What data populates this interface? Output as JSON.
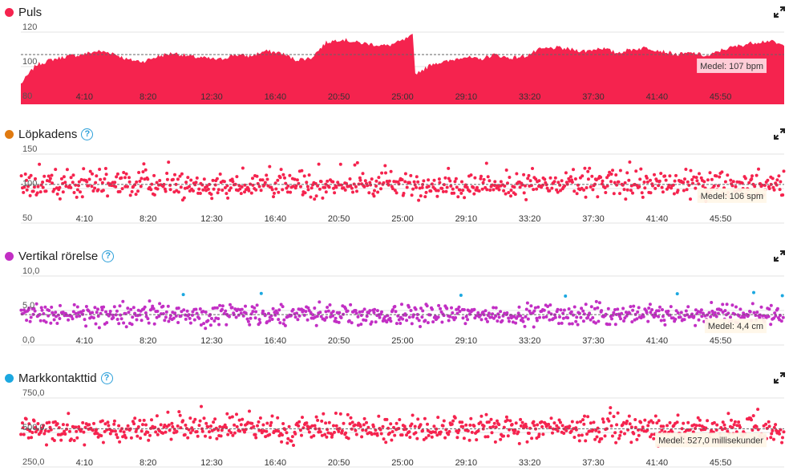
{
  "colors": {
    "pulse": "#f5234e",
    "cadence": "#e07a10",
    "vertical": "#c22fc4",
    "gct": "#1ca8e0",
    "green": "#4caf3a",
    "help": "#2b9fd9"
  },
  "x_ticks": [
    "4:10",
    "8:20",
    "12:30",
    "16:40",
    "20:50",
    "25:00",
    "29:10",
    "33:20",
    "37:30",
    "41:40",
    "45:50"
  ],
  "panels": [
    {
      "key": "pulse",
      "title": "Puls",
      "has_help": false,
      "y_ticks": [
        "120",
        "100",
        "80"
      ],
      "avg_label": "Medel: 107 bpm",
      "chart_data": {
        "type": "area",
        "x_unit": "min:sek",
        "ylim": [
          80,
          120
        ],
        "average": 107,
        "series": [
          {
            "x": [
              "0:00",
              "1:00",
              "2:00",
              "3:00",
              "4:00",
              "5:00",
              "6:00",
              "7:00",
              "8:00",
              "9:00",
              "10:00",
              "11:00",
              "12:00",
              "13:00",
              "14:00",
              "15:00",
              "16:00",
              "17:00",
              "18:00",
              "19:00",
              "20:00",
              "21:00",
              "22:00",
              "23:00",
              "24:00",
              "25:00",
              "25:40",
              "25:50",
              "26:30",
              "27:00",
              "28:00",
              "29:00",
              "30:00",
              "31:00",
              "32:00",
              "33:00",
              "34:00",
              "35:00",
              "36:00",
              "37:00",
              "38:00",
              "39:00",
              "40:00",
              "41:00",
              "42:00",
              "43:00",
              "44:00",
              "45:00",
              "46:00",
              "47:00",
              "48:00",
              "49:00",
              "50:00"
            ],
            "values": [
              90,
              101,
              104,
              106,
              107,
              109,
              108,
              104,
              103,
              106,
              108,
              106,
              105,
              104,
              107,
              106,
              109,
              108,
              104,
              105,
              114,
              116,
              114,
              113,
              112,
              115,
              118,
              96,
              99,
              102,
              103,
              106,
              104,
              107,
              105,
              106,
              110,
              111,
              110,
              109,
              111,
              108,
              110,
              111,
              109,
              107,
              108,
              106,
              110,
              112,
              114,
              115,
              112
            ]
          }
        ]
      }
    },
    {
      "key": "cadence",
      "title": "Löpkadens",
      "has_help": true,
      "y_ticks": [
        "150",
        "100",
        "50"
      ],
      "avg_label": "Medel: 106 spm",
      "chart_data": {
        "type": "scatter",
        "ylim": [
          50,
          150
        ],
        "average": 106
      }
    },
    {
      "key": "vertical",
      "title": "Vertikal rörelse",
      "has_help": true,
      "y_ticks": [
        "10,0",
        "5,0",
        "0,0"
      ],
      "avg_label": "Medel: 4,4 cm",
      "chart_data": {
        "type": "scatter",
        "ylim": [
          0,
          10
        ],
        "average": 4.4
      }
    },
    {
      "key": "gct",
      "title": "Markkontakttid",
      "has_help": true,
      "y_ticks": [
        "750,0",
        "500,0",
        "250,0"
      ],
      "avg_label": "Medel: 527,0 millisekunder",
      "chart_data": {
        "type": "scatter",
        "ylim": [
          250,
          750
        ],
        "average": 527
      }
    }
  ]
}
